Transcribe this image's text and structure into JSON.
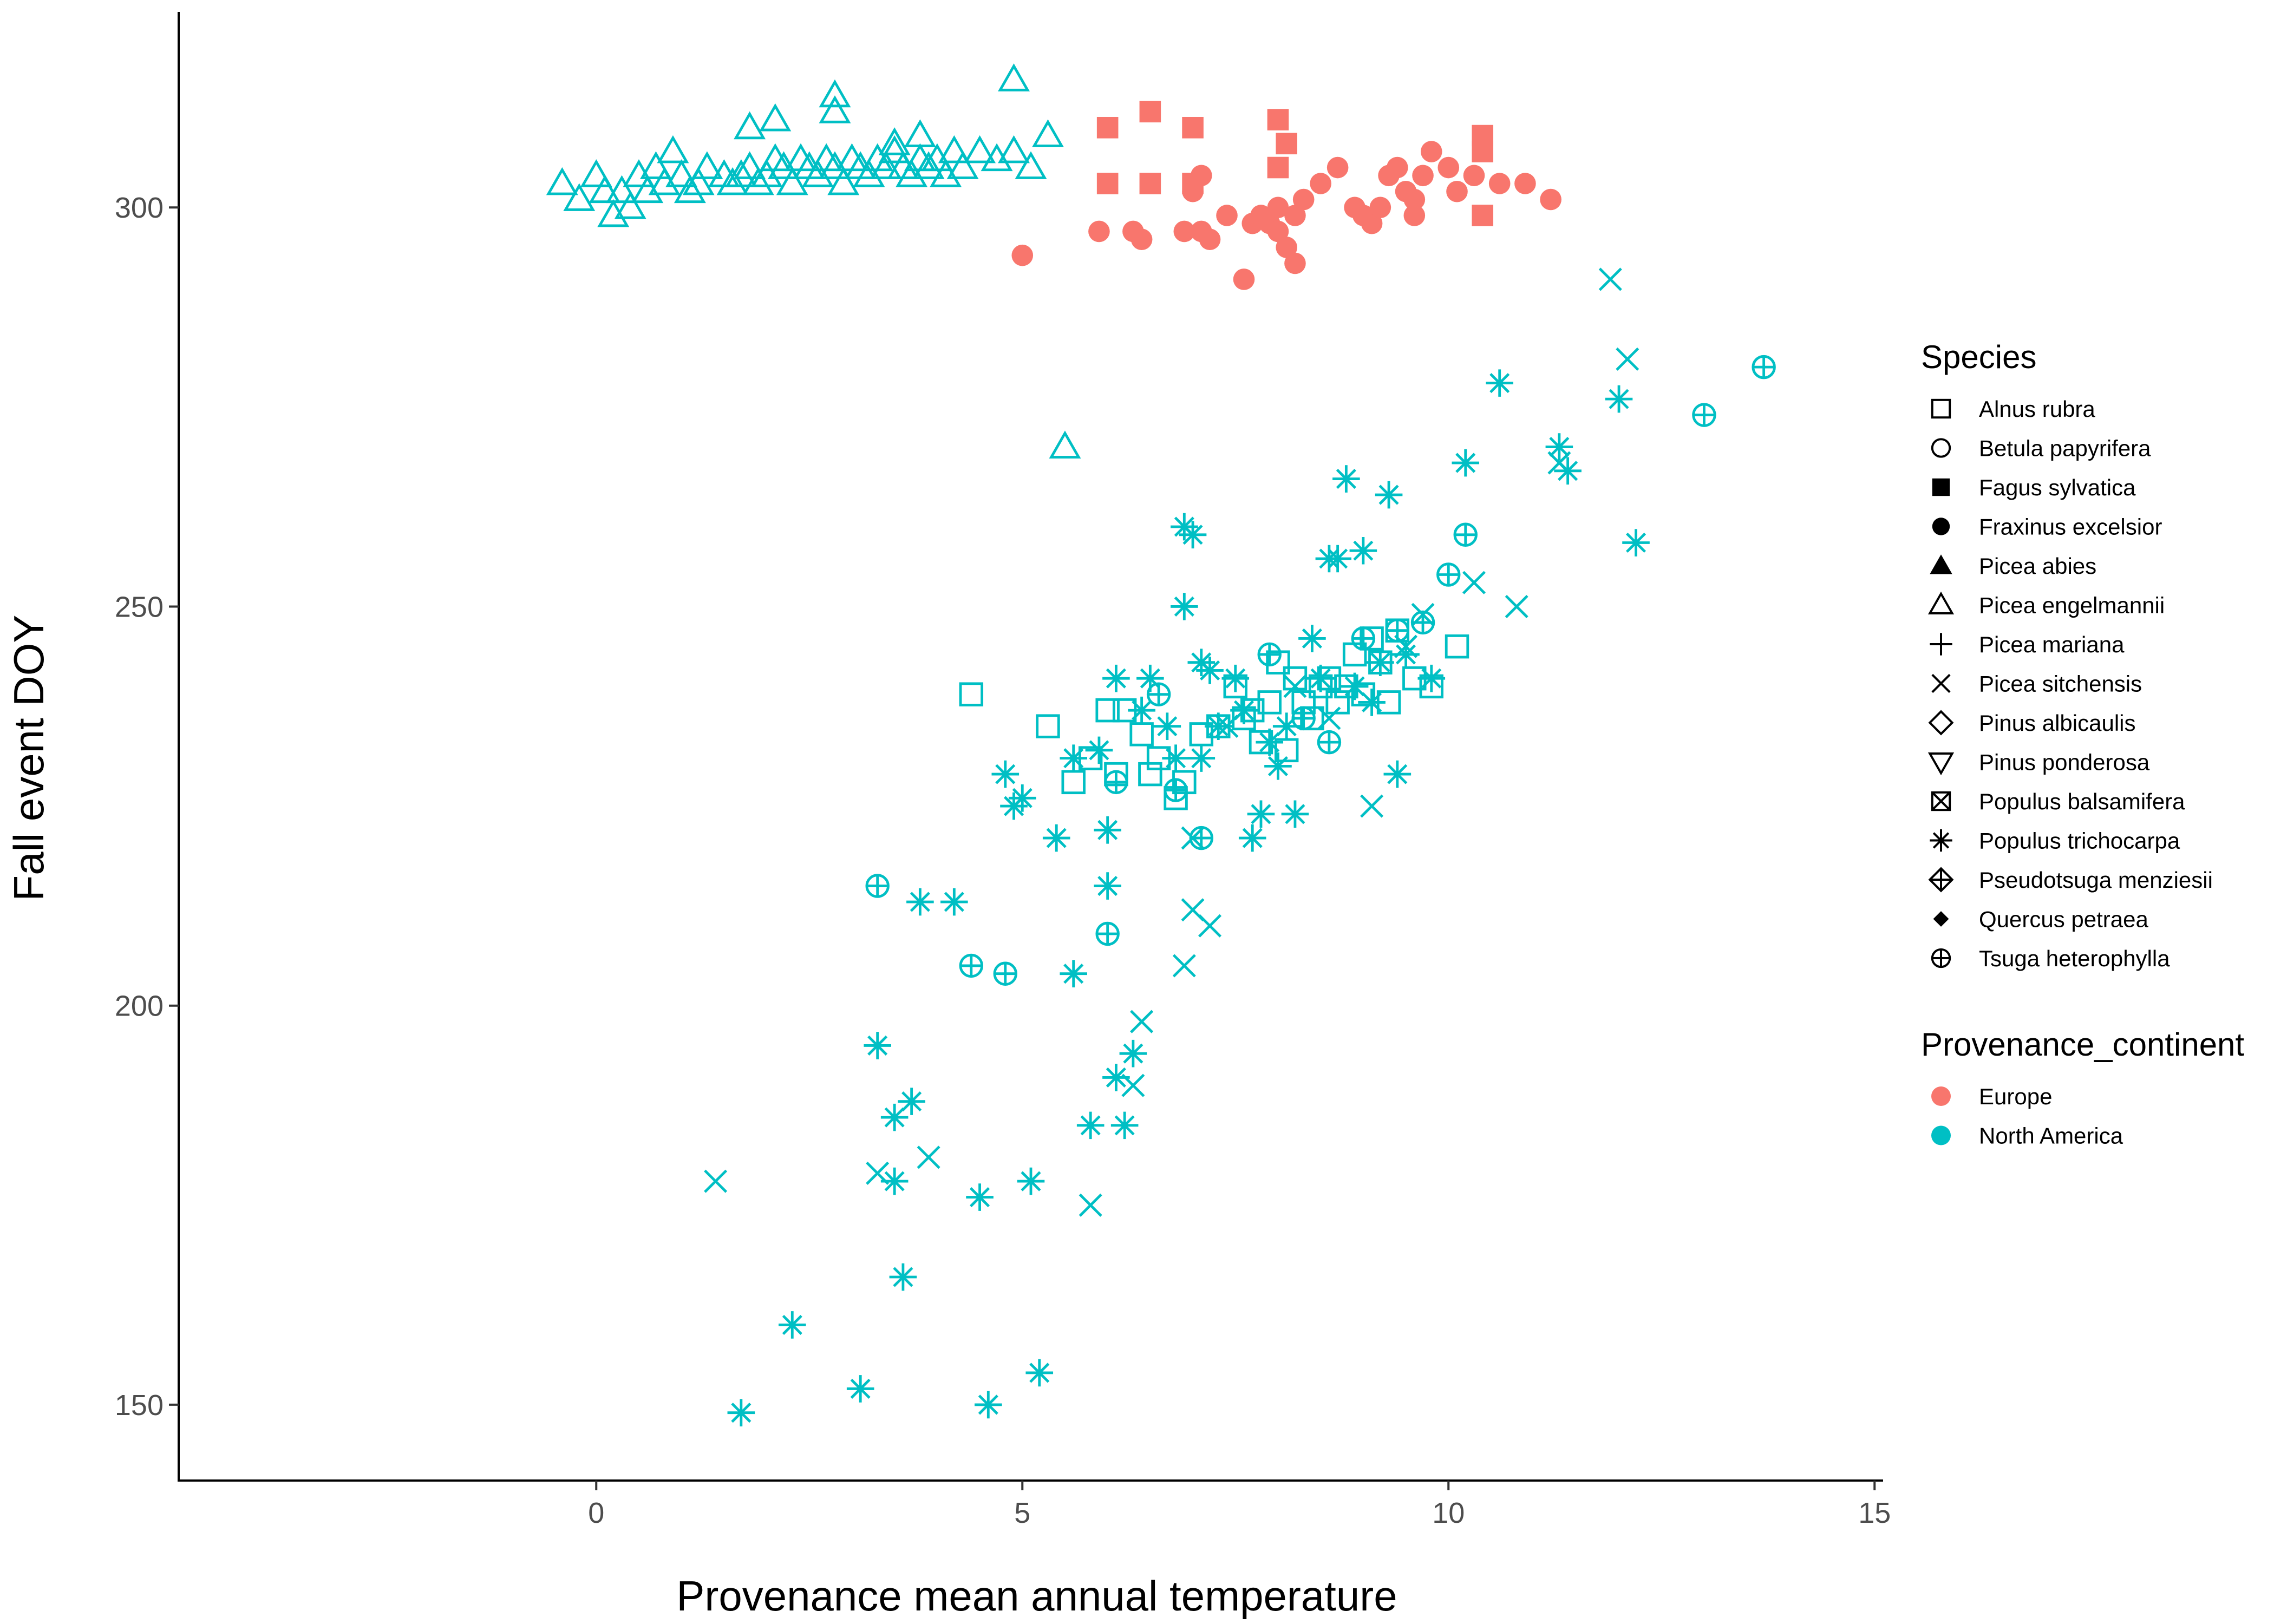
{
  "chart_data": {
    "type": "scatter",
    "title": "",
    "xlabel": "Provenance mean annual temperature",
    "ylabel": "Fall event DOY",
    "xlim": [
      -4.9,
      15.1
    ],
    "ylim": [
      140.5,
      324.5
    ],
    "xticks": [
      0,
      5,
      10,
      15
    ],
    "yticks": [
      150,
      200,
      250,
      300
    ],
    "grid": false,
    "legend_placement": "right",
    "colors": {
      "Europe": "#F8766D",
      "North America": "#00BFC4"
    },
    "legend_species": {
      "title": "Species",
      "entries": [
        {
          "label": "Alnus rubra",
          "shape": "square-open"
        },
        {
          "label": "Betula papyrifera",
          "shape": "circle-open"
        },
        {
          "label": "Fagus sylvatica",
          "shape": "square-filled"
        },
        {
          "label": "Fraxinus excelsior",
          "shape": "circle-filled"
        },
        {
          "label": "Picea abies",
          "shape": "triangle-filled"
        },
        {
          "label": "Picea engelmannii",
          "shape": "triangle-open"
        },
        {
          "label": "Picea mariana",
          "shape": "plus"
        },
        {
          "label": "Picea sitchensis",
          "shape": "cross"
        },
        {
          "label": "Pinus albicaulis",
          "shape": "diamond-open"
        },
        {
          "label": "Pinus ponderosa",
          "shape": "triangle-down-open"
        },
        {
          "label": "Populus balsamifera",
          "shape": "square-cross"
        },
        {
          "label": "Populus trichocarpa",
          "shape": "asterisk"
        },
        {
          "label": "Pseudotsuga menziesii",
          "shape": "diamond-plus"
        },
        {
          "label": "Quercus petraea",
          "shape": "diamond-filled"
        },
        {
          "label": "Tsuga heterophylla",
          "shape": "circle-plus"
        }
      ]
    },
    "legend_continent": {
      "title": "Provenance_continent",
      "entries": [
        {
          "label": "Europe",
          "color": "#F8766D"
        },
        {
          "label": "North America",
          "color": "#00BFC4"
        }
      ]
    },
    "series": [
      {
        "species": "Picea engelmannii",
        "continent": "North America",
        "shape": "triangle-open",
        "points": [
          [
            -0.4,
            303
          ],
          [
            -0.2,
            301
          ],
          [
            0,
            304
          ],
          [
            0.1,
            302
          ],
          [
            0.2,
            299
          ],
          [
            0.3,
            302
          ],
          [
            0.4,
            300
          ],
          [
            0.5,
            304
          ],
          [
            0.6,
            302
          ],
          [
            0.7,
            305
          ],
          [
            0.8,
            303
          ],
          [
            0.9,
            307
          ],
          [
            1.0,
            304
          ],
          [
            1.1,
            302
          ],
          [
            1.2,
            303
          ],
          [
            1.3,
            305
          ],
          [
            1.5,
            304
          ],
          [
            1.6,
            303
          ],
          [
            1.7,
            304
          ],
          [
            1.8,
            305
          ],
          [
            1.9,
            303
          ],
          [
            2.0,
            304
          ],
          [
            2.1,
            306
          ],
          [
            2.2,
            305
          ],
          [
            2.3,
            303
          ],
          [
            2.4,
            306
          ],
          [
            2.5,
            305
          ],
          [
            2.6,
            304
          ],
          [
            2.7,
            306
          ],
          [
            2.8,
            305
          ],
          [
            2.9,
            303
          ],
          [
            3.0,
            306
          ],
          [
            3.1,
            305
          ],
          [
            3.2,
            304
          ],
          [
            3.3,
            306
          ],
          [
            3.4,
            305
          ],
          [
            3.5,
            307
          ],
          [
            3.6,
            305
          ],
          [
            3.7,
            304
          ],
          [
            3.8,
            306
          ],
          [
            3.9,
            305
          ],
          [
            4.0,
            306
          ],
          [
            4.1,
            304
          ],
          [
            4.2,
            307
          ],
          [
            4.3,
            305
          ],
          [
            4.5,
            307
          ],
          [
            4.7,
            306
          ],
          [
            4.9,
            307
          ],
          [
            5.1,
            305
          ],
          [
            5.3,
            309
          ],
          [
            1.8,
            310
          ],
          [
            2.1,
            311
          ],
          [
            2.8,
            312
          ],
          [
            2.8,
            314
          ],
          [
            3.5,
            308
          ],
          [
            3.8,
            309
          ],
          [
            4.9,
            316
          ],
          [
            5.5,
            270
          ]
        ]
      },
      {
        "species": "Fagus sylvatica",
        "continent": "Europe",
        "shape": "square-filled",
        "points": [
          [
            6.0,
            310
          ],
          [
            6.5,
            312
          ],
          [
            7.0,
            310
          ],
          [
            8.0,
            311
          ],
          [
            8.1,
            308
          ],
          [
            8.0,
            305
          ],
          [
            6.0,
            303
          ],
          [
            6.5,
            303
          ],
          [
            7.0,
            303
          ],
          [
            10.4,
            309
          ],
          [
            10.4,
            307
          ],
          [
            10.4,
            299
          ]
        ]
      },
      {
        "species": "Fraxinus excelsior",
        "continent": "Europe",
        "shape": "circle-filled",
        "points": [
          [
            5.0,
            294
          ],
          [
            5.9,
            297
          ],
          [
            6.3,
            297
          ],
          [
            6.4,
            296
          ],
          [
            6.9,
            297
          ],
          [
            7.0,
            302
          ],
          [
            7.1,
            304
          ],
          [
            7.1,
            297
          ],
          [
            7.2,
            296
          ],
          [
            7.4,
            299
          ],
          [
            7.6,
            291
          ],
          [
            7.7,
            298
          ],
          [
            7.8,
            299
          ],
          [
            7.9,
            298
          ],
          [
            8.0,
            297
          ],
          [
            8.0,
            300
          ],
          [
            8.1,
            295
          ],
          [
            8.2,
            293
          ],
          [
            8.2,
            299
          ],
          [
            8.3,
            301
          ],
          [
            8.5,
            303
          ],
          [
            8.7,
            305
          ],
          [
            8.9,
            300
          ],
          [
            9.0,
            299
          ],
          [
            9.1,
            298
          ],
          [
            9.2,
            300
          ],
          [
            9.3,
            304
          ],
          [
            9.4,
            305
          ],
          [
            9.5,
            302
          ],
          [
            9.6,
            301
          ],
          [
            9.6,
            299
          ],
          [
            9.7,
            304
          ],
          [
            9.8,
            307
          ],
          [
            10.0,
            305
          ],
          [
            10.1,
            302
          ],
          [
            10.3,
            304
          ],
          [
            10.6,
            303
          ],
          [
            10.9,
            303
          ],
          [
            11.2,
            301
          ]
        ]
      },
      {
        "species": "Alnus rubra",
        "continent": "North America",
        "shape": "square-open",
        "points": [
          [
            4.4,
            239
          ],
          [
            5.3,
            235
          ],
          [
            5.6,
            228
          ],
          [
            5.8,
            231
          ],
          [
            6.0,
            237
          ],
          [
            6.1,
            229
          ],
          [
            6.2,
            237
          ],
          [
            6.4,
            234
          ],
          [
            6.5,
            229
          ],
          [
            6.6,
            231
          ],
          [
            6.8,
            226
          ],
          [
            6.9,
            228
          ],
          [
            7.1,
            234
          ],
          [
            7.3,
            235
          ],
          [
            7.5,
            240
          ],
          [
            7.6,
            236
          ],
          [
            7.7,
            237
          ],
          [
            7.8,
            233
          ],
          [
            7.9,
            238
          ],
          [
            8.0,
            243
          ],
          [
            8.1,
            232
          ],
          [
            8.2,
            241
          ],
          [
            8.3,
            238
          ],
          [
            8.4,
            236
          ],
          [
            8.5,
            240
          ],
          [
            8.6,
            241
          ],
          [
            8.7,
            238
          ],
          [
            8.8,
            240
          ],
          [
            8.9,
            244
          ],
          [
            9.0,
            239
          ],
          [
            9.1,
            246
          ],
          [
            9.2,
            243
          ],
          [
            9.3,
            238
          ],
          [
            9.4,
            247
          ],
          [
            9.6,
            241
          ],
          [
            9.8,
            240
          ],
          [
            10.1,
            245
          ]
        ]
      },
      {
        "species": "Populus trichocarpa",
        "continent": "North America",
        "shape": "asterisk",
        "points": [
          [
            1.7,
            149
          ],
          [
            2.3,
            160
          ],
          [
            3.1,
            152
          ],
          [
            3.3,
            195
          ],
          [
            3.5,
            186
          ],
          [
            3.5,
            178
          ],
          [
            3.6,
            166
          ],
          [
            3.7,
            188
          ],
          [
            3.8,
            213
          ],
          [
            4.2,
            213
          ],
          [
            4.5,
            176
          ],
          [
            4.6,
            150
          ],
          [
            4.8,
            229
          ],
          [
            4.9,
            225
          ],
          [
            5.0,
            226
          ],
          [
            5.1,
            178
          ],
          [
            5.2,
            154
          ],
          [
            5.4,
            221
          ],
          [
            5.6,
            231
          ],
          [
            5.6,
            204
          ],
          [
            5.8,
            185
          ],
          [
            5.9,
            232
          ],
          [
            6.0,
            222
          ],
          [
            6.0,
            215
          ],
          [
            6.1,
            241
          ],
          [
            6.1,
            191
          ],
          [
            6.2,
            185
          ],
          [
            6.3,
            194
          ],
          [
            6.4,
            237
          ],
          [
            6.5,
            241
          ],
          [
            6.7,
            235
          ],
          [
            6.8,
            231
          ],
          [
            6.9,
            260
          ],
          [
            6.9,
            250
          ],
          [
            7.0,
            259
          ],
          [
            7.1,
            243
          ],
          [
            7.1,
            231
          ],
          [
            7.2,
            242
          ],
          [
            7.3,
            235
          ],
          [
            7.5,
            241
          ],
          [
            7.6,
            237
          ],
          [
            7.7,
            221
          ],
          [
            7.8,
            224
          ],
          [
            7.9,
            233
          ],
          [
            8.0,
            230
          ],
          [
            8.1,
            235
          ],
          [
            8.2,
            224
          ],
          [
            8.4,
            246
          ],
          [
            8.5,
            241
          ],
          [
            8.6,
            256
          ],
          [
            8.7,
            256
          ],
          [
            8.8,
            266
          ],
          [
            8.9,
            240
          ],
          [
            9.0,
            257
          ],
          [
            9.1,
            238
          ],
          [
            9.2,
            243
          ],
          [
            9.3,
            264
          ],
          [
            9.4,
            229
          ],
          [
            9.5,
            244
          ],
          [
            9.8,
            241
          ],
          [
            10.2,
            268
          ],
          [
            10.6,
            278
          ],
          [
            11.3,
            270
          ],
          [
            11.4,
            267
          ],
          [
            12.0,
            276
          ],
          [
            12.2,
            258
          ]
        ]
      },
      {
        "species": "Picea sitchensis",
        "continent": "North America",
        "shape": "cross",
        "points": [
          [
            1.4,
            178
          ],
          [
            3.3,
            179
          ],
          [
            3.9,
            181
          ],
          [
            5.8,
            175
          ],
          [
            6.3,
            190
          ],
          [
            6.4,
            198
          ],
          [
            6.9,
            205
          ],
          [
            7.0,
            212
          ],
          [
            7.2,
            210
          ],
          [
            7.0,
            221
          ],
          [
            7.4,
            235
          ],
          [
            8.2,
            240
          ],
          [
            8.6,
            236
          ],
          [
            9.1,
            225
          ],
          [
            9.5,
            245
          ],
          [
            9.7,
            249
          ],
          [
            10.3,
            253
          ],
          [
            10.8,
            250
          ],
          [
            11.9,
            291
          ],
          [
            12.1,
            281
          ],
          [
            11.3,
            268
          ]
        ]
      },
      {
        "species": "Tsuga heterophylla",
        "continent": "North America",
        "shape": "circle-plus",
        "points": [
          [
            3.3,
            215
          ],
          [
            4.4,
            205
          ],
          [
            4.8,
            204
          ],
          [
            6.0,
            209
          ],
          [
            6.1,
            228
          ],
          [
            6.6,
            239
          ],
          [
            6.8,
            227
          ],
          [
            7.1,
            221
          ],
          [
            7.9,
            244
          ],
          [
            8.3,
            236
          ],
          [
            8.6,
            233
          ],
          [
            9.0,
            246
          ],
          [
            9.4,
            247
          ],
          [
            9.7,
            248
          ],
          [
            10.0,
            254
          ],
          [
            10.2,
            259
          ],
          [
            13.0,
            274
          ],
          [
            13.7,
            280
          ]
        ]
      }
    ]
  }
}
